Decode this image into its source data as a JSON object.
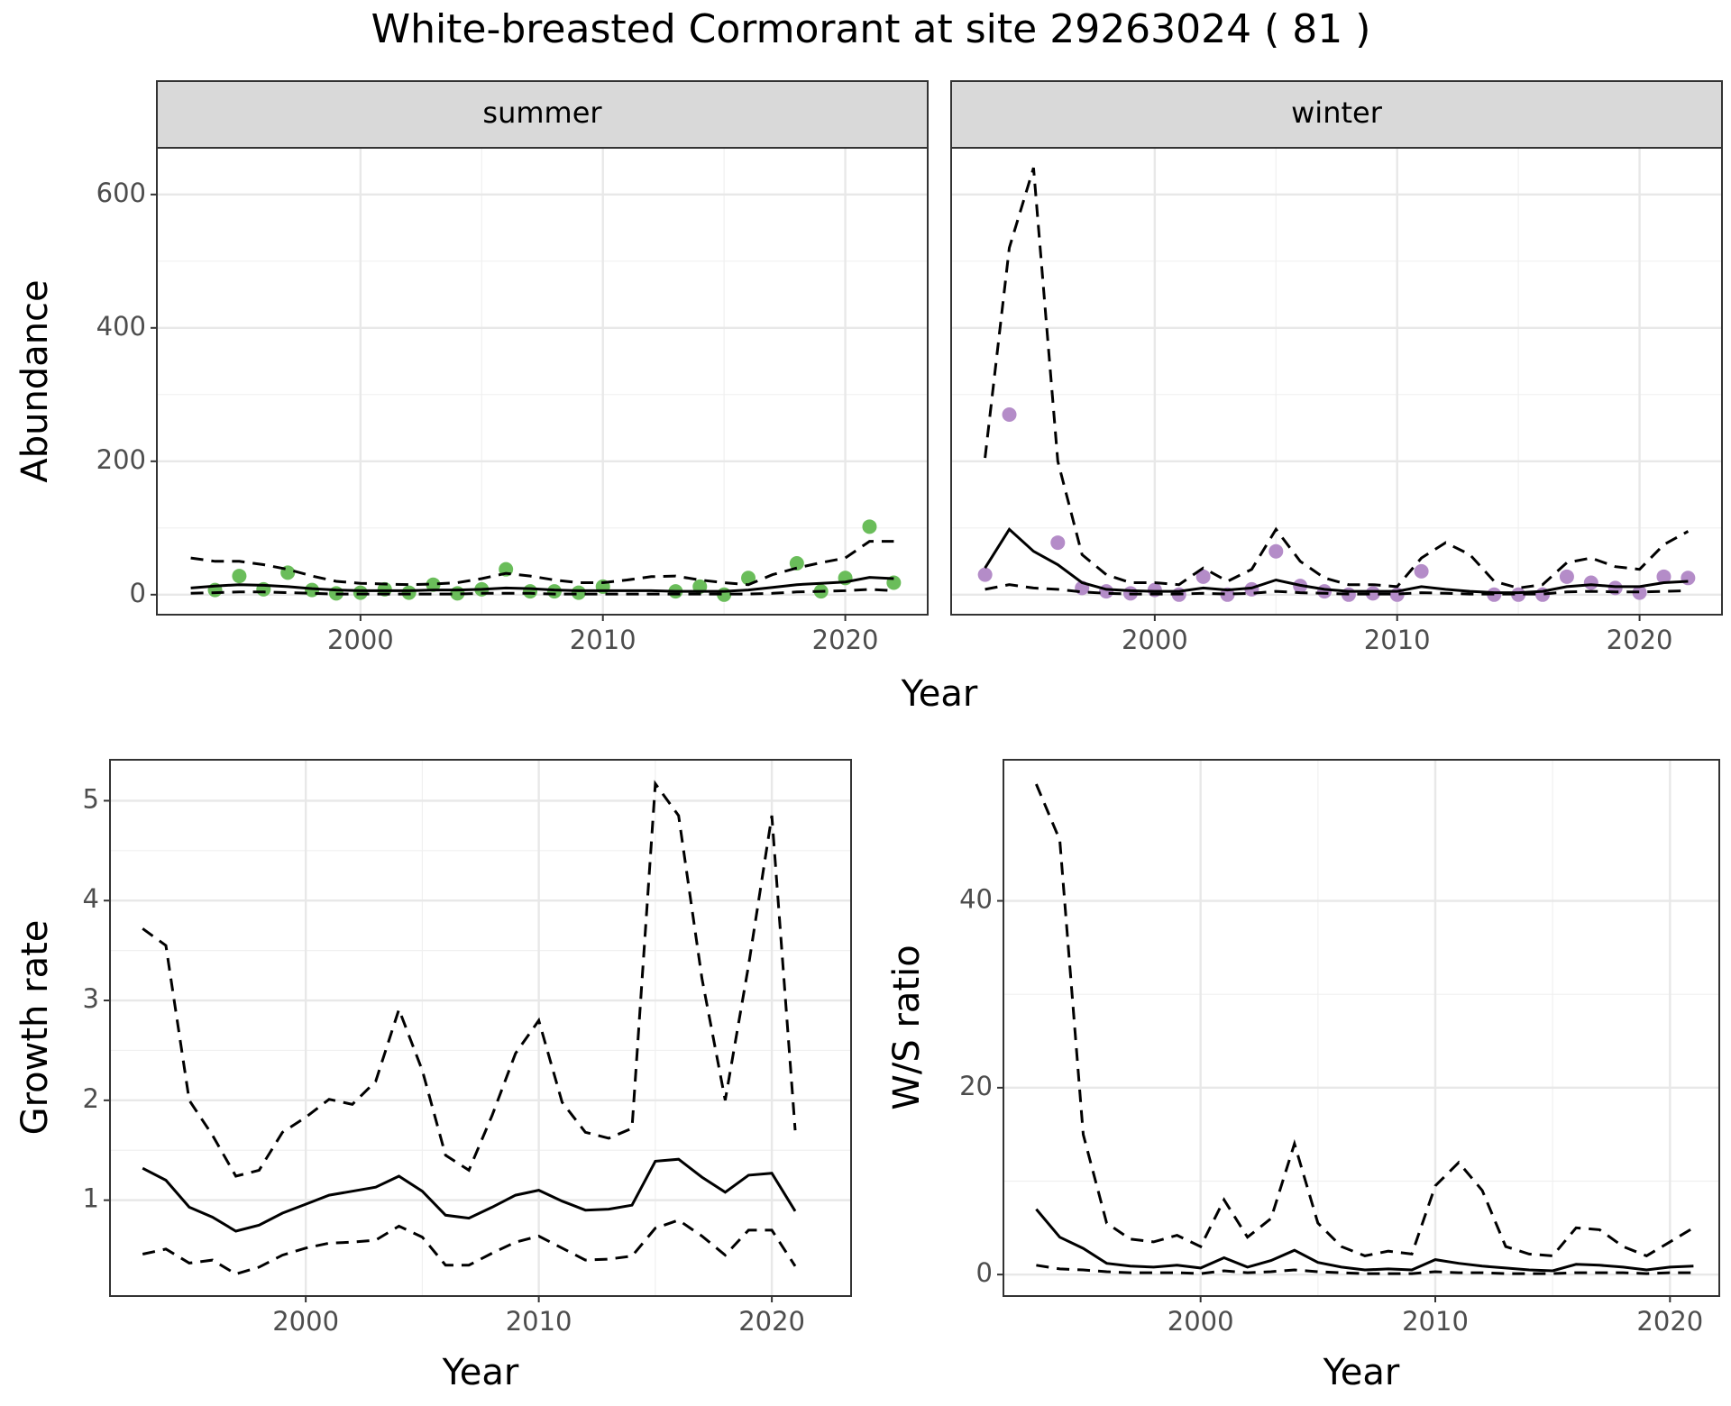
{
  "title": "White-breasted Cormorant at site 29263024 ( 81 )",
  "chart_data": [
    {
      "type": "line",
      "strip": "summer",
      "ylabel": "Abundance",
      "xlabel": "Year",
      "grid": true,
      "xlim": [
        1991.6,
        2023.4
      ],
      "ylim": [
        -30,
        670
      ],
      "xticks": [
        2000,
        2010,
        2020
      ],
      "yticks": [
        0,
        200,
        400,
        600
      ],
      "x": [
        1993,
        1994,
        1995,
        1996,
        1997,
        1998,
        1999,
        2000,
        2001,
        2002,
        2003,
        2004,
        2005,
        2006,
        2007,
        2008,
        2009,
        2010,
        2011,
        2012,
        2013,
        2014,
        2015,
        2016,
        2017,
        2018,
        2019,
        2020,
        2021,
        2022
      ],
      "series": [
        {
          "style": "points",
          "color": "#6abd5a",
          "values": [
            null,
            7,
            28,
            8,
            33,
            7,
            2,
            3,
            8,
            3,
            15,
            2,
            8,
            38,
            5,
            5,
            3,
            12,
            null,
            null,
            5,
            12,
            0,
            25,
            null,
            47,
            5,
            25,
            102,
            18
          ]
        },
        {
          "style": "solid",
          "color": "#000000",
          "values": [
            10,
            13,
            15,
            14,
            12,
            9,
            7,
            6,
            6,
            6,
            7,
            7,
            8,
            10,
            9,
            7,
            6,
            6,
            6,
            6,
            5,
            5,
            5,
            7,
            11,
            15,
            17,
            19,
            26,
            24
          ]
        },
        {
          "style": "dashed",
          "color": "#000000",
          "values": [
            2,
            3,
            4,
            4,
            3,
            2,
            1,
            1,
            1,
            1,
            1,
            1,
            2,
            2,
            2,
            1,
            1,
            1,
            1,
            1,
            1,
            1,
            1,
            1,
            2,
            4,
            5,
            6,
            8,
            6
          ]
        },
        {
          "style": "dashed",
          "color": "#000000",
          "values": [
            55,
            50,
            50,
            45,
            38,
            28,
            20,
            17,
            16,
            15,
            16,
            18,
            24,
            32,
            28,
            22,
            18,
            18,
            22,
            27,
            28,
            22,
            18,
            15,
            30,
            40,
            48,
            55,
            80,
            80
          ]
        }
      ]
    },
    {
      "type": "line",
      "strip": "winter",
      "grid": true,
      "ytick_labels": false,
      "xlim": [
        1991.6,
        2023.4
      ],
      "ylim": [
        -30,
        670
      ],
      "xticks": [
        2000,
        2010,
        2020
      ],
      "yticks": [
        0,
        200,
        400,
        600
      ],
      "x": [
        1993,
        1994,
        1995,
        1996,
        1997,
        1998,
        1999,
        2000,
        2001,
        2002,
        2003,
        2004,
        2005,
        2006,
        2007,
        2008,
        2009,
        2010,
        2011,
        2012,
        2013,
        2014,
        2015,
        2016,
        2017,
        2018,
        2019,
        2020,
        2021,
        2022
      ],
      "series": [
        {
          "style": "points",
          "color": "#b48cc8",
          "values": [
            30,
            270,
            null,
            78,
            10,
            5,
            2,
            7,
            0,
            27,
            0,
            8,
            65,
            13,
            5,
            0,
            2,
            0,
            35,
            null,
            null,
            0,
            0,
            0,
            27,
            18,
            10,
            3,
            27,
            25
          ]
        },
        {
          "style": "solid",
          "color": "#000000",
          "values": [
            40,
            98,
            65,
            45,
            18,
            8,
            6,
            5,
            5,
            10,
            7,
            10,
            22,
            14,
            8,
            5,
            5,
            5,
            12,
            8,
            5,
            3,
            3,
            5,
            12,
            15,
            12,
            12,
            18,
            20
          ]
        },
        {
          "style": "dashed",
          "color": "#000000",
          "values": [
            8,
            15,
            10,
            8,
            4,
            2,
            1,
            1,
            1,
            2,
            1,
            2,
            5,
            3,
            2,
            1,
            1,
            1,
            3,
            2,
            1,
            1,
            1,
            1,
            4,
            5,
            4,
            4,
            5,
            6
          ]
        },
        {
          "style": "dashed",
          "color": "#000000",
          "values": [
            205,
            520,
            640,
            200,
            60,
            30,
            18,
            18,
            15,
            40,
            20,
            38,
            98,
            50,
            25,
            15,
            15,
            12,
            55,
            78,
            60,
            20,
            10,
            15,
            48,
            55,
            42,
            38,
            75,
            95
          ]
        }
      ]
    },
    {
      "type": "line",
      "ylabel": "Growth rate",
      "xlabel": "Year",
      "grid": true,
      "xlim": [
        1991.6,
        2023.4
      ],
      "ylim": [
        0.04,
        5.41
      ],
      "xticks": [
        2000,
        2010,
        2020
      ],
      "yticks": [
        1,
        2,
        3,
        4,
        5
      ],
      "x": [
        1993,
        1994,
        1995,
        1996,
        1997,
        1998,
        1999,
        2000,
        2001,
        2002,
        2003,
        2004,
        2005,
        2006,
        2007,
        2008,
        2009,
        2010,
        2011,
        2012,
        2013,
        2014,
        2015,
        2016,
        2017,
        2018,
        2019,
        2020,
        2021
      ],
      "series": [
        {
          "style": "solid",
          "color": "#000000",
          "values": [
            1.32,
            1.2,
            0.93,
            0.83,
            0.69,
            0.75,
            0.87,
            0.96,
            1.05,
            1.09,
            1.13,
            1.24,
            1.09,
            0.85,
            0.82,
            0.93,
            1.05,
            1.1,
            0.99,
            0.9,
            0.91,
            0.95,
            1.39,
            1.41,
            1.23,
            1.08,
            1.25,
            1.27,
            0.89
          ]
        },
        {
          "style": "dashed",
          "color": "#000000",
          "values": [
            0.46,
            0.51,
            0.37,
            0.4,
            0.26,
            0.33,
            0.45,
            0.52,
            0.57,
            0.58,
            0.6,
            0.74,
            0.63,
            0.35,
            0.35,
            0.47,
            0.58,
            0.64,
            0.52,
            0.4,
            0.41,
            0.44,
            0.72,
            0.8,
            0.64,
            0.45,
            0.7,
            0.7,
            0.34
          ]
        },
        {
          "style": "dashed",
          "color": "#000000",
          "values": [
            3.72,
            3.55,
            2.0,
            1.65,
            1.24,
            1.3,
            1.68,
            1.83,
            2.01,
            1.96,
            2.19,
            2.91,
            2.3,
            1.45,
            1.3,
            1.85,
            2.47,
            2.8,
            1.98,
            1.68,
            1.62,
            1.72,
            5.17,
            4.85,
            3.22,
            2.0,
            3.35,
            4.85,
            1.7
          ]
        }
      ]
    },
    {
      "type": "line",
      "ylabel": "W/S ratio",
      "xlabel": "Year",
      "grid": true,
      "xlim": [
        1991.6,
        2022.1
      ],
      "ylim": [
        -2.3,
        55.1
      ],
      "xticks": [
        2000,
        2010,
        2020
      ],
      "yticks": [
        0,
        20,
        40
      ],
      "x": [
        1993,
        1994,
        1995,
        1996,
        1997,
        1998,
        1999,
        2000,
        2001,
        2002,
        2003,
        2004,
        2005,
        2006,
        2007,
        2008,
        2009,
        2010,
        2011,
        2012,
        2013,
        2014,
        2015,
        2016,
        2017,
        2018,
        2019,
        2020,
        2021
      ],
      "series": [
        {
          "style": "solid",
          "color": "#000000",
          "values": [
            7,
            4,
            2.8,
            1.2,
            0.9,
            0.8,
            1,
            0.7,
            1.8,
            0.8,
            1.5,
            2.6,
            1.3,
            0.8,
            0.5,
            0.6,
            0.5,
            1.6,
            1.2,
            0.9,
            0.7,
            0.5,
            0.4,
            1.1,
            1,
            0.8,
            0.5,
            0.8,
            0.9
          ]
        },
        {
          "style": "dashed",
          "color": "#000000",
          "values": [
            1,
            0.6,
            0.5,
            0.3,
            0.2,
            0.2,
            0.2,
            0.1,
            0.4,
            0.2,
            0.3,
            0.5,
            0.3,
            0.2,
            0.1,
            0.1,
            0.1,
            0.3,
            0.2,
            0.2,
            0.1,
            0.1,
            0.1,
            0.2,
            0.2,
            0.2,
            0.1,
            0.2,
            0.2
          ]
        },
        {
          "style": "dashed",
          "color": "#000000",
          "values": [
            52.5,
            46.5,
            15,
            5.5,
            3.8,
            3.5,
            4.2,
            3,
            8,
            4,
            6,
            14,
            5.5,
            3,
            2,
            2.5,
            2.2,
            9.5,
            12,
            9,
            3,
            2.2,
            2,
            5,
            4.8,
            3,
            2,
            3.5,
            5
          ]
        }
      ]
    }
  ]
}
